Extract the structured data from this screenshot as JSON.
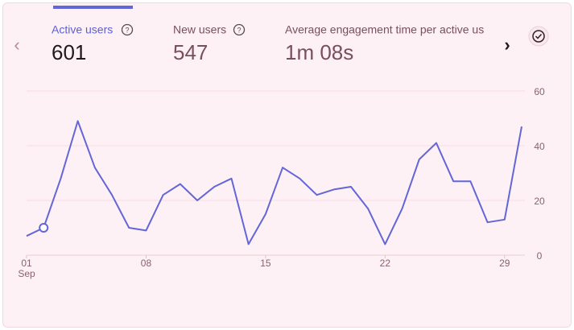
{
  "metrics": [
    {
      "label": "Active users",
      "value": 601
    },
    {
      "label": "New users",
      "value": 547
    },
    {
      "label": "Average engagement time per active us",
      "value": "1m 08s"
    }
  ],
  "chart_data": {
    "type": "line",
    "categories": [
      "01",
      null,
      null,
      null,
      null,
      null,
      null,
      "08",
      null,
      null,
      null,
      null,
      null,
      null,
      "15",
      null,
      null,
      null,
      null,
      null,
      null,
      "22",
      null,
      null,
      null,
      null,
      null,
      null,
      "29",
      null
    ],
    "month_label": "Sep",
    "series": [
      {
        "name": "Active users",
        "color": "#6366d9",
        "values": [
          7,
          10,
          28,
          49,
          32,
          22,
          10,
          9,
          22,
          26,
          20,
          25,
          28,
          4,
          15,
          32,
          28,
          22,
          24,
          25,
          17,
          4,
          17,
          35,
          41,
          27,
          27,
          12,
          13,
          47
        ]
      }
    ],
    "highlighted_point": 1,
    "ylim": [
      0,
      60
    ],
    "yticks": [
      0,
      20,
      40,
      60
    ],
    "grid": true
  }
}
